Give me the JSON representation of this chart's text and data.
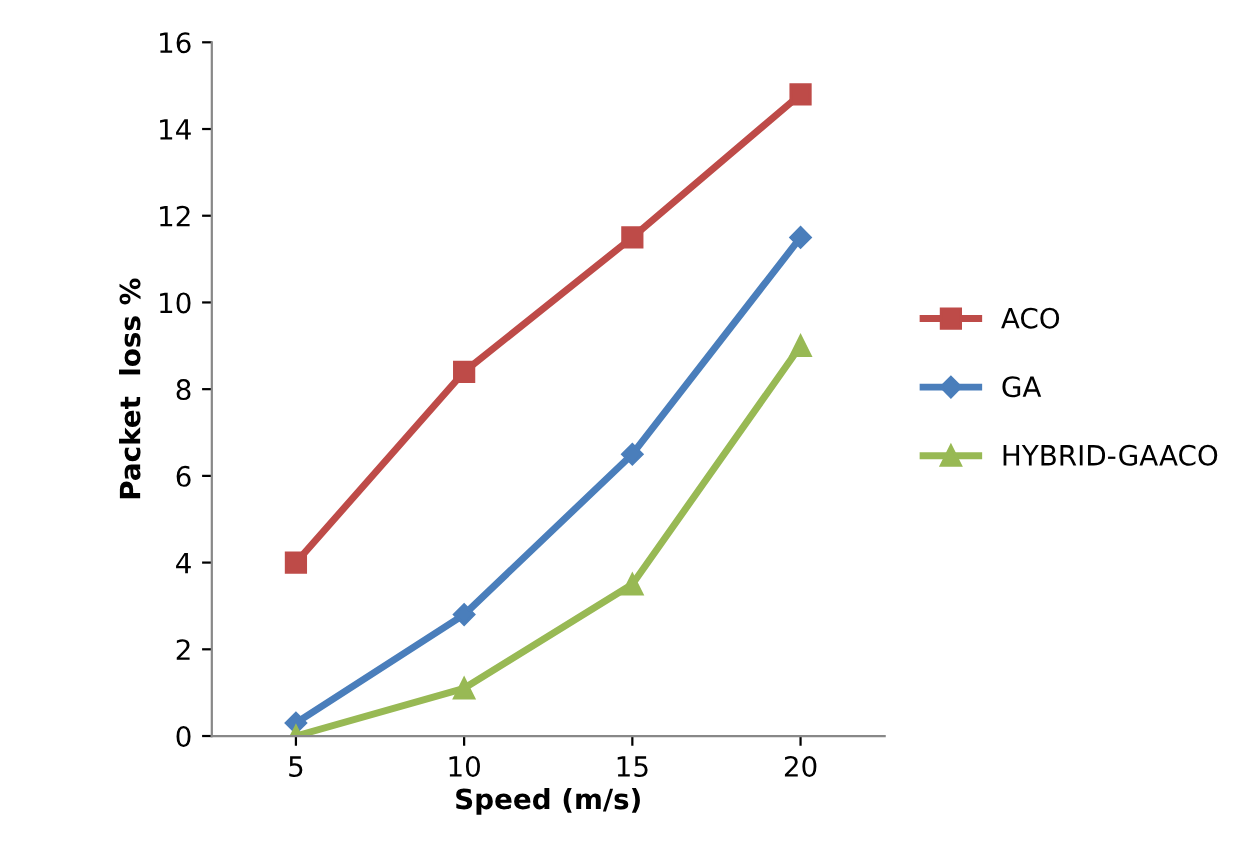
{
  "chart_data": {
    "type": "line",
    "xlabel": "Speed (m/s)",
    "ylabel": "Packet  loss %",
    "categories": [
      "5",
      "10",
      "15",
      "20"
    ],
    "series": [
      {
        "name": "ACO",
        "color": "#be4b48",
        "marker": "square",
        "values": [
          4,
          8.4,
          11.5,
          14.8
        ]
      },
      {
        "name": "GA",
        "color": "#4a7ebb",
        "marker": "diamond",
        "values": [
          0.3,
          2.8,
          6.5,
          11.5
        ]
      },
      {
        "name": "HYBRID-GAACO",
        "color": "#98b954",
        "marker": "triangle",
        "values": [
          0,
          1.1,
          3.5,
          9
        ]
      }
    ],
    "ylim": [
      0,
      16
    ],
    "yticks": [
      0,
      2,
      4,
      6,
      8,
      10,
      12,
      14,
      16
    ],
    "grid": false,
    "legend": "right",
    "line_style": "solid"
  }
}
